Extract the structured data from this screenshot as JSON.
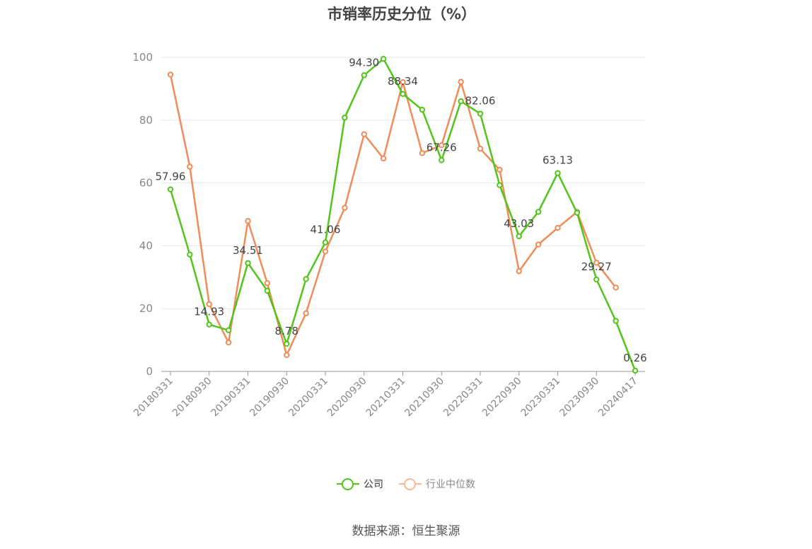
{
  "title": "市销率历史分位（%）",
  "source": "数据来源：恒生聚源",
  "colors": {
    "company": "#52c41a",
    "industry": "#f08c58",
    "axis": "#888888",
    "grid": "#e6e6e6",
    "label": "#444444"
  },
  "chart_data": {
    "type": "line",
    "title": "市销率历史分位（%）",
    "xlabel": "",
    "ylabel": "",
    "ylim": [
      0,
      100
    ],
    "yticks": [
      "0",
      "20",
      "40",
      "60",
      "80",
      "100"
    ],
    "xtick_labels": [
      "20180331",
      "20180930",
      "20190331",
      "20190930",
      "20200331",
      "20200930",
      "20210331",
      "20210930",
      "20220331",
      "20220930",
      "20230331",
      "20230930",
      "20240417"
    ],
    "x": [
      "20180331",
      "20180630",
      "20180930",
      "20181231",
      "20190331",
      "20190630",
      "20190930",
      "20191231",
      "20200331",
      "20200630",
      "20200930",
      "20201231",
      "20210331",
      "20210630",
      "20210930",
      "20211231",
      "20220331",
      "20220630",
      "20220930",
      "20221231",
      "20230331",
      "20230630",
      "20230930",
      "20231231",
      "20240417"
    ],
    "grid": true,
    "legend": "bottom",
    "series": [
      {
        "name": "公司",
        "color": "#52c41a",
        "values": [
          57.96,
          37.2,
          14.93,
          13.1,
          34.51,
          25.7,
          8.78,
          29.4,
          41.06,
          80.8,
          94.3,
          99.5,
          88.34,
          83.3,
          67.26,
          86.0,
          82.06,
          59.3,
          43.03,
          50.8,
          63.13,
          50.5,
          29.27,
          16.1,
          0.26
        ]
      },
      {
        "name": "行业中位数",
        "color": "#f08c58",
        "values": [
          94.5,
          65.2,
          21.4,
          9.2,
          47.9,
          28.1,
          5.2,
          18.5,
          38.2,
          52.1,
          75.5,
          67.8,
          92.1,
          69.5,
          72.0,
          92.2,
          70.9,
          64.2,
          31.9,
          40.4,
          45.7,
          50.8,
          34.6,
          26.7,
          null
        ]
      }
    ],
    "data_labels": [
      {
        "index": 0,
        "text": "57.96"
      },
      {
        "index": 2,
        "text": "14.93"
      },
      {
        "index": 4,
        "text": "34.51"
      },
      {
        "index": 6,
        "text": "8.78"
      },
      {
        "index": 8,
        "text": "41.06"
      },
      {
        "index": 10,
        "text": "94.30"
      },
      {
        "index": 12,
        "text": "88.34"
      },
      {
        "index": 14,
        "text": "67.26"
      },
      {
        "index": 16,
        "text": "82.06"
      },
      {
        "index": 18,
        "text": "43.03"
      },
      {
        "index": 20,
        "text": "63.13"
      },
      {
        "index": 22,
        "text": "29.27"
      },
      {
        "index": 24,
        "text": "0.26"
      }
    ]
  }
}
